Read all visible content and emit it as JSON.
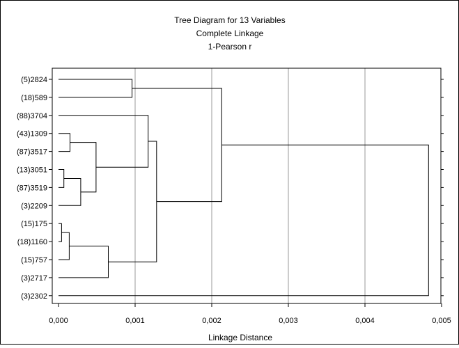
{
  "chart_data": {
    "type": "dendrogram",
    "title": "Tree Diagram for 13  Variables",
    "subtitle_lines": [
      "Complete Linkage",
      "1-Pearson r"
    ],
    "xlabel": "Linkage Distance",
    "xlim": [
      0,
      0.005
    ],
    "x_ticks": [
      0,
      0.001,
      0.002,
      0.003,
      0.004,
      0.005
    ],
    "x_tick_labels": [
      "0,000",
      "0,001",
      "0,002",
      "0,003",
      "0,004",
      "0,005"
    ],
    "grid": "vertical",
    "leaves": [
      "(5)2824",
      "(18)589",
      "(88)3704",
      "(43)1309",
      "(87)3517",
      "(13)3051",
      "(87)3519",
      "(3)2209",
      "(15)175",
      "(18)1160",
      "(15)757",
      "(3)2717",
      "(3)2302"
    ],
    "merges": [
      {
        "children": [
          "L8",
          "L9"
        ],
        "height": 4e-05
      },
      {
        "children": [
          "L5",
          "L6"
        ],
        "height": 7e-05
      },
      {
        "children": [
          "m0",
          "L10"
        ],
        "height": 0.00014
      },
      {
        "children": [
          "L3",
          "L4"
        ],
        "height": 0.00015
      },
      {
        "children": [
          "m1",
          "L7"
        ],
        "height": 0.00029
      },
      {
        "children": [
          "m3",
          "m4"
        ],
        "height": 0.00049
      },
      {
        "children": [
          "m2",
          "L11"
        ],
        "height": 0.00065
      },
      {
        "children": [
          "L0",
          "L1"
        ],
        "height": 0.00096
      },
      {
        "children": [
          "L2",
          "m5"
        ],
        "height": 0.00117
      },
      {
        "children": [
          "m8",
          "m6"
        ],
        "height": 0.00128
      },
      {
        "children": [
          "m7",
          "m9"
        ],
        "height": 0.00213
      },
      {
        "children": [
          "m10",
          "L12"
        ],
        "height": 0.00483
      }
    ]
  }
}
